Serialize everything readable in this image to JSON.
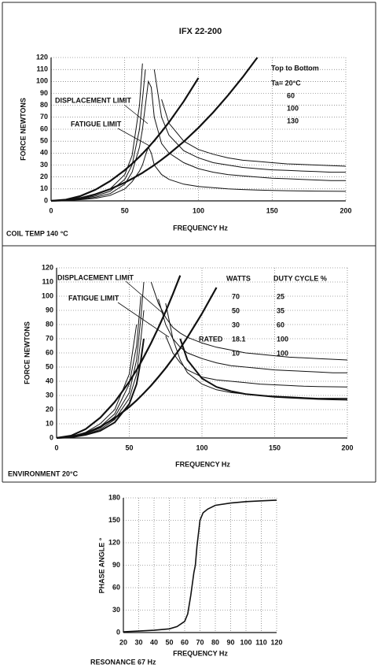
{
  "chart_data": [
    {
      "type": "line",
      "title": "IFX 22-200",
      "xlabel": "FREQUENCY Hz",
      "ylabel": "FORCE NEWTONS",
      "footer": "COIL TEMP 140 °C",
      "legend_title": "Top to Bottom",
      "grid": true,
      "xlim": [
        0,
        200
      ],
      "xticks": [
        0,
        50,
        100,
        150,
        200
      ],
      "ylim": [
        0,
        120
      ],
      "yticks": [
        0,
        10,
        20,
        30,
        40,
        50,
        60,
        70,
        80,
        90,
        100,
        110,
        120
      ],
      "x": [
        0,
        10,
        20,
        30,
        40,
        50,
        55,
        60,
        62,
        64,
        66,
        68,
        70,
        75,
        80,
        90,
        100,
        110,
        120,
        130,
        140,
        150,
        160,
        170,
        180,
        190,
        200
      ],
      "series": [
        {
          "name": "Ta= 20°C",
          "color": "#111",
          "linewidth": 1,
          "values": [
            0,
            0.5,
            2,
            5,
            10,
            22,
            38,
            80,
            115,
            null,
            null,
            null,
            null,
            85,
            65,
            50,
            43,
            39,
            36,
            34,
            33,
            32,
            31,
            30.5,
            30,
            29.5,
            29
          ]
        },
        {
          "name": "60",
          "color": "#111",
          "linewidth": 1,
          "values": [
            0,
            0.4,
            1.7,
            4,
            8,
            18,
            30,
            60,
            85,
            110,
            null,
            null,
            110,
            70,
            55,
            42,
            36,
            32,
            30,
            28,
            27,
            26,
            25.5,
            25,
            24.5,
            24,
            24
          ]
        },
        {
          "name": "100",
          "color": "#111",
          "linewidth": 1,
          "values": [
            0,
            0.3,
            1.3,
            3,
            6,
            14,
            24,
            45,
            60,
            80,
            100,
            95,
            70,
            48,
            40,
            32,
            27,
            24,
            22,
            21,
            20,
            19,
            18.5,
            18,
            17.5,
            17,
            17
          ]
        },
        {
          "name": "130",
          "color": "#111",
          "linewidth": 1,
          "values": [
            0,
            0.2,
            1,
            2.2,
            4.5,
            10,
            16,
            25,
            30,
            38,
            45,
            40,
            30,
            22,
            18,
            14,
            12,
            11,
            10,
            9.5,
            9,
            8.8,
            8.5,
            8.3,
            8.2,
            8.1,
            8
          ]
        },
        {
          "name": "DISPLACEMENT LIMIT",
          "color": "#111",
          "linewidth": 2.2,
          "values": [
            0,
            1.0,
            4.1,
            9.3,
            16.5,
            25.7,
            31.1,
            37,
            39.5,
            42.1,
            44.8,
            47.6,
            50.4,
            57.9,
            65.8,
            83.3,
            102.9,
            null,
            null,
            null,
            null,
            null,
            null,
            null,
            null,
            null,
            null
          ]
        },
        {
          "name": "FATIGUE LIMIT",
          "color": "#111",
          "linewidth": 2.2,
          "values": [
            0,
            0.6,
            2.4,
            5.5,
            9.8,
            15.3,
            18.5,
            22,
            23.5,
            25.1,
            26.7,
            28.3,
            30,
            34.4,
            39.2,
            49.6,
            61.2,
            74.1,
            88.2,
            103.5,
            120,
            null,
            null,
            null,
            null,
            null,
            null
          ]
        }
      ]
    },
    {
      "type": "line",
      "xlabel": "FREQUENCY Hz",
      "ylabel": "FORCE NEWTONS",
      "footer": "ENVIRONMENT 20°C",
      "watts_header": "WATTS",
      "duty_header": "DUTY CYCLE %",
      "rated": "RATED",
      "duty_cycle": [
        25,
        35,
        60,
        100,
        100
      ],
      "grid": true,
      "xlim": [
        0,
        200
      ],
      "xticks": [
        0,
        50,
        100,
        150,
        200
      ],
      "ylim": [
        0,
        120
      ],
      "yticks": [
        0,
        10,
        20,
        30,
        40,
        50,
        60,
        70,
        80,
        90,
        100,
        110,
        120
      ],
      "x": [
        0,
        10,
        20,
        30,
        40,
        50,
        55,
        58,
        60,
        65,
        70,
        75,
        80,
        85,
        90,
        100,
        110,
        120,
        130,
        140,
        150,
        160,
        170,
        180,
        190,
        200
      ],
      "series": [
        {
          "name": "70",
          "color": "#111",
          "linewidth": 1,
          "values": [
            0,
            1,
            4,
            10,
            20,
            45,
            80,
            null,
            null,
            110,
            95,
            85,
            78,
            74,
            71,
            67,
            64,
            62,
            60,
            59,
            58,
            57,
            56.5,
            56,
            55.5,
            55
          ]
        },
        {
          "name": "50",
          "color": "#111",
          "linewidth": 1,
          "values": [
            0,
            0.8,
            3.5,
            8,
            17,
            38,
            65,
            100,
            null,
            null,
            98,
            80,
            70,
            64,
            60,
            56,
            53,
            51,
            50,
            49,
            48,
            47.5,
            47,
            46.5,
            46,
            46
          ]
        },
        {
          "name": "30",
          "color": "#111",
          "linewidth": 1,
          "values": [
            0,
            0.7,
            3,
            7,
            15,
            32,
            55,
            85,
            110,
            null,
            null,
            72,
            60,
            53,
            48,
            43,
            41,
            40,
            39,
            38,
            37.5,
            37,
            36.5,
            36.3,
            36.1,
            36
          ]
        },
        {
          "name": "18.1",
          "color": "#111",
          "linewidth": 1,
          "values": [
            0,
            0.6,
            2.6,
            6,
            13,
            28,
            45,
            70,
            90,
            null,
            null,
            95,
            70,
            55,
            46,
            38,
            34,
            32,
            31,
            30,
            29.5,
            29,
            28.5,
            28,
            28,
            28
          ]
        },
        {
          "name": "10",
          "color": "#111",
          "linewidth": 2,
          "values": [
            0,
            0.5,
            2.2,
            5,
            11,
            24,
            38,
            55,
            70,
            null,
            null,
            null,
            null,
            70,
            55,
            42,
            36,
            33,
            31,
            30,
            29,
            28.5,
            28,
            27.5,
            27.2,
            27
          ]
        },
        {
          "name": "DISPLACEMENT LIMIT",
          "color": "#111",
          "linewidth": 2.2,
          "values": [
            0,
            1.6,
            6.3,
            14.3,
            25.4,
            39.6,
            48,
            53.3,
            57.1,
            67,
            77.7,
            89.2,
            101.5,
            114.6,
            null,
            null,
            null,
            null,
            null,
            null,
            null,
            null,
            null,
            null,
            null,
            null
          ]
        },
        {
          "name": "FATIGUE LIMIT",
          "color": "#111",
          "linewidth": 2.2,
          "values": [
            0,
            0.9,
            3.5,
            7.9,
            14,
            21.9,
            26.5,
            29.5,
            31.6,
            37,
            43,
            49.3,
            56.1,
            63.3,
            71,
            87.7,
            106.1,
            null,
            null,
            null,
            null,
            null,
            null,
            null,
            null,
            null
          ]
        }
      ]
    },
    {
      "type": "line",
      "xlabel": "FREQUENCY Hz",
      "ylabel": "PHASE ANGLE °",
      "footer": "RESONANCE 67 Hz",
      "grid": true,
      "xlim": [
        20,
        120
      ],
      "xticks": [
        20,
        30,
        40,
        50,
        60,
        70,
        80,
        90,
        100,
        110,
        120
      ],
      "ylim": [
        0,
        180
      ],
      "yticks": [
        0,
        30,
        60,
        90,
        120,
        150,
        180
      ],
      "x": [
        20,
        30,
        40,
        50,
        55,
        60,
        62,
        64,
        66,
        67,
        68,
        70,
        72,
        75,
        80,
        90,
        100,
        110,
        120
      ],
      "series": [
        {
          "color": "#111",
          "linewidth": 1.6,
          "values": [
            1,
            2,
            3,
            5,
            8,
            15,
            25,
            50,
            80,
            90,
            115,
            150,
            160,
            165,
            170,
            173,
            175,
            176,
            177
          ]
        }
      ]
    }
  ]
}
